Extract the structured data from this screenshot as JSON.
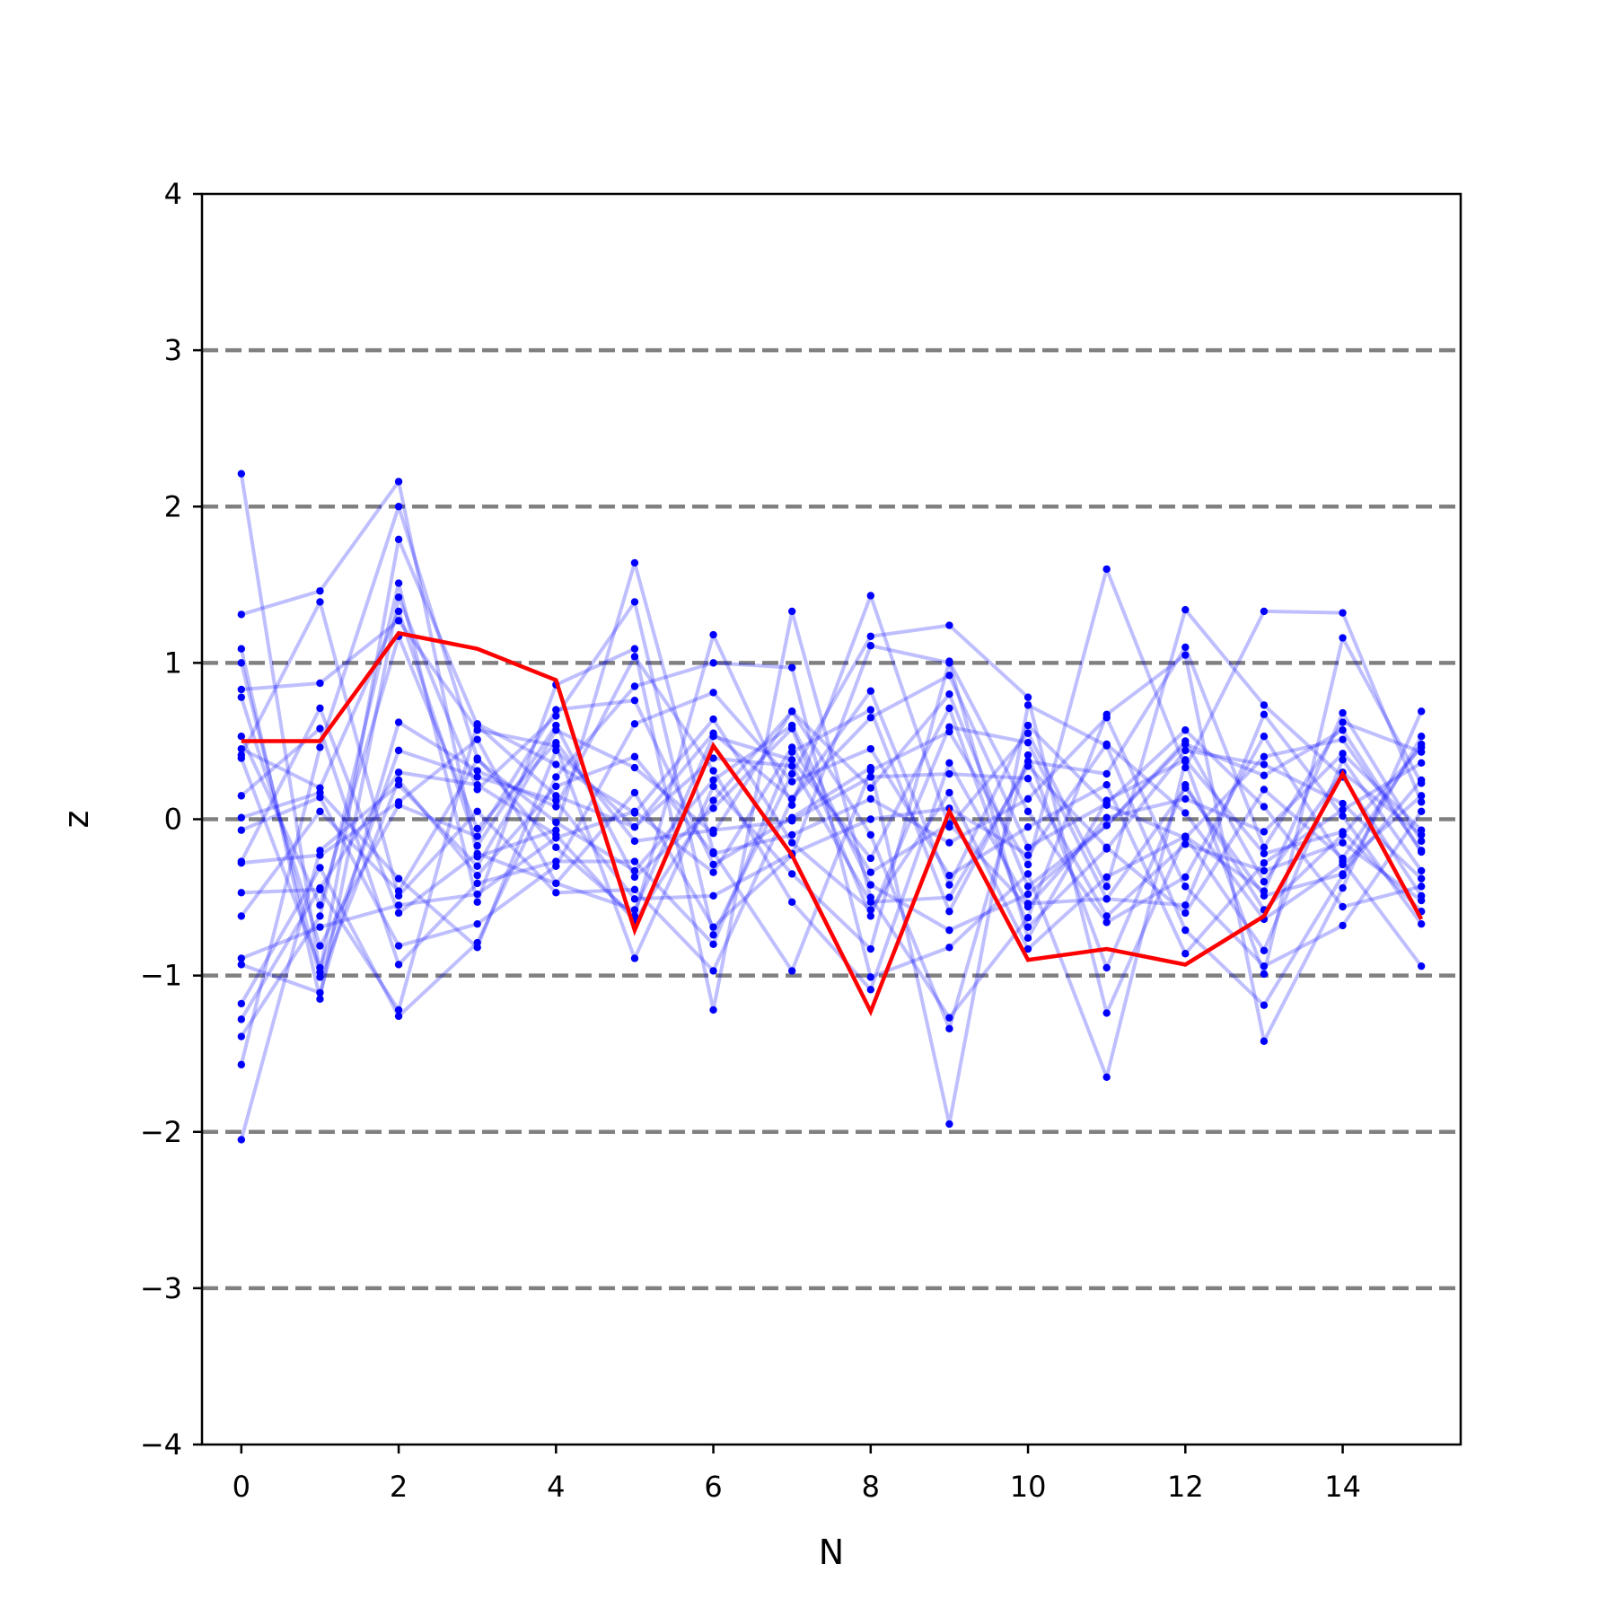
{
  "chart_data": {
    "type": "line",
    "title": "",
    "xlabel": "N",
    "ylabel": "z",
    "xlim": [
      -0.5,
      15.5
    ],
    "ylim": [
      -4,
      4
    ],
    "xticks": [
      0,
      2,
      4,
      6,
      8,
      10,
      12,
      14
    ],
    "xtick_labels": [
      "0",
      "2",
      "4",
      "6",
      "8",
      "10",
      "12",
      "14"
    ],
    "yticks": [
      -4,
      -3,
      -2,
      -1,
      0,
      1,
      2,
      3,
      4
    ],
    "ytick_labels": [
      "−4",
      "−3",
      "−2",
      "−1",
      "0",
      "1",
      "2",
      "3",
      "4"
    ],
    "reference_lines": [
      -3,
      -2,
      -1,
      0,
      1,
      2,
      3
    ],
    "grid": false,
    "x": [
      0,
      1,
      2,
      3,
      4,
      5,
      6,
      7,
      8,
      9,
      10,
      11,
      12,
      13,
      14,
      15
    ],
    "highlight_series": {
      "color": "#ff0000",
      "values": [
        0.5,
        0.5,
        1.19,
        1.09,
        0.89,
        -0.71,
        0.47,
        -0.23,
        -1.23,
        0.05,
        -0.9,
        -0.83,
        -0.93,
        -0.62,
        0.29,
        -0.64
      ]
    },
    "background_series_color": "#0000ff",
    "background_series": [
      {
        "values": [
          2.21,
          -0.98,
          1.79,
          0.6,
          0.15,
          -0.05,
          0.55,
          0.13,
          0.82,
          -0.42,
          0.6,
          0.09,
          -0.12,
          0.4,
          0.51,
          -0.2
        ]
      },
      {
        "values": [
          -2.05,
          -0.2,
          0.22,
          -0.3,
          0.57,
          0.33,
          -0.09,
          0.69,
          -0.1,
          -1.34,
          0.41,
          -0.95,
          0.22,
          -0.58,
          -0.1,
          0.46
        ]
      },
      {
        "values": [
          1.31,
          1.46,
          2.16,
          -0.24,
          -0.07,
          1.64,
          -0.21,
          -0.97,
          0.31,
          0.56,
          -0.29,
          1.6,
          0.33,
          1.33,
          1.32,
          0.11
        ]
      },
      {
        "values": [
          -1.57,
          0.46,
          2.0,
          0.39,
          -0.18,
          -0.62,
          1.18,
          0.09,
          1.43,
          -0.05,
          0.55,
          -0.43,
          1.34,
          0.73,
          0.27,
          -0.49
        ]
      },
      {
        "values": [
          1.09,
          -1.15,
          1.42,
          0.19,
          0.66,
          1.39,
          -0.74,
          0.29,
          1.17,
          1.24,
          0.78,
          -1.24,
          -0.11,
          -0.46,
          0.68,
          -0.14
        ]
      },
      {
        "values": [
          -1.39,
          -0.62,
          1.51,
          -0.53,
          0.86,
          1.09,
          -1.22,
          1.33,
          -0.5,
          -1.27,
          -0.63,
          0.67,
          1.05,
          -1.42,
          -0.44,
          0.69
        ]
      },
      {
        "values": [
          0.83,
          0.87,
          1.27,
          0.57,
          0.47,
          -0.89,
          0.21,
          -0.35,
          -0.83,
          1.01,
          0.05,
          -0.66,
          -0.37,
          0.53,
          -0.27,
          -0.94
        ]
      },
      {
        "values": [
          -1.18,
          -0.31,
          -1.26,
          -0.79,
          0.27,
          0.85,
          1.0,
          0.97,
          -1.01,
          -0.82,
          -0.35,
          -1.65,
          0.37,
          -0.99,
          1.16,
          0.23
        ]
      },
      {
        "values": [
          0.41,
          1.39,
          -0.49,
          0.05,
          -0.47,
          -0.45,
          -0.97,
          0.13,
          0.65,
          0.92,
          -0.18,
          0.1,
          0.57,
          0.08,
          -0.56,
          -0.43
        ]
      },
      {
        "values": [
          -0.93,
          -1.11,
          0.62,
          0.31,
          0.08,
          1.04,
          0.31,
          -0.53,
          -1.09,
          0.36,
          -0.54,
          -0.51,
          -0.55,
          0.67,
          0.02,
          -0.67
        ]
      },
      {
        "values": [
          0.15,
          0.58,
          -0.93,
          -0.41,
          -0.27,
          -0.27,
          -0.8,
          0.43,
          0.7,
          -0.59,
          0.37,
          0.29,
          1.1,
          -0.18,
          0.62,
          0.43
        ]
      },
      {
        "values": [
          -0.47,
          -0.45,
          -1.22,
          0.61,
          0.35,
          0.04,
          0.64,
          -0.15,
          -0.58,
          0.17,
          -0.83,
          -0.37,
          -0.11,
          -0.84,
          0.38,
          -0.33
        ]
      },
      {
        "values": [
          0.78,
          -0.81,
          0.09,
          -0.11,
          0.7,
          0.76,
          -0.29,
          0.01,
          0.33,
          -1.95,
          0.73,
          0.47,
          -0.71,
          -1.19,
          -0.36,
          0.53
        ]
      },
      {
        "values": [
          -0.27,
          0.71,
          -0.6,
          -0.22,
          -0.41,
          -0.58,
          0.53,
          0.38,
          -0.25,
          0.71,
          -0.69,
          -0.19,
          0.44,
          0.35,
          0.1,
          -0.38
        ]
      },
      {
        "values": [
          1.0,
          -1.01,
          0.25,
          -0.36,
          0.21,
          0.4,
          -0.22,
          -0.1,
          0.13,
          -0.15,
          0.13,
          0.65,
          -0.43,
          -0.94,
          -0.68,
          0.05
        ]
      },
      {
        "values": [
          -0.62,
          0.05,
          -0.46,
          0.38,
          -0.02,
          -0.33,
          0.25,
          0.6,
          -0.42,
          -0.71,
          -0.48,
          -0.04,
          0.48,
          0.28,
          0.57,
          -0.21
        ]
      },
      {
        "values": [
          0.53,
          -0.55,
          1.17,
          -0.06,
          0.49,
          -0.14,
          -0.07,
          -0.01,
          0.27,
          0.29,
          0.26,
          -0.62,
          -0.16,
          -0.33,
          -0.15,
          -0.52
        ]
      },
      {
        "values": [
          -0.07,
          0.14,
          -0.81,
          -0.67,
          -0.3,
          0.61,
          0.81,
          0.24,
          0.45,
          -0.36,
          -0.05,
          0.22,
          -0.86,
          -0.28,
          0.06,
          0.36
        ]
      },
      {
        "values": [
          0.39,
          -0.95,
          0.44,
          0.27,
          0.12,
          -0.51,
          -0.49,
          -0.22,
          0.0,
          0.07,
          -0.23,
          0.48,
          0.04,
          -0.64,
          -0.29,
          0.15
        ]
      },
      {
        "values": [
          -0.89,
          -0.69,
          -0.55,
          -0.48,
          -0.12,
          0.05,
          -0.34,
          0.46,
          -0.34,
          -0.03,
          -0.56,
          0.01,
          0.13,
          -0.08,
          0.42,
          -0.07
        ]
      },
      {
        "values": [
          0.45,
          0.2,
          1.33,
          -0.17,
          0.6,
          -0.37,
          0.07,
          0.58,
          -0.62,
          0.59,
          0.49,
          -0.51,
          0.2,
          -0.49,
          -0.35,
          0.25
        ]
      },
      {
        "values": [
          -0.28,
          -0.23,
          0.11,
          0.51,
          -0.41,
          0.17,
          -0.69,
          -0.23,
          1.11,
          1.0,
          -0.76,
          0.12,
          0.38,
          -0.22,
          -0.08,
          -0.59
        ]
      },
      {
        "values": [
          0.01,
          0.17,
          -0.38,
          -0.82,
          0.44,
          -0.05,
          0.39,
          0.34,
          -0.53,
          -0.5,
          0.34,
          -0.18,
          -0.6,
          0.19,
          -0.25,
          0.48
        ]
      },
      {
        "values": [
          -1.28,
          -0.44,
          0.3,
          0.22,
          -0.1,
          -0.65,
          0.12,
          0.69,
          0.2,
          0.8,
          -0.43,
          -0.04,
          0.5,
          -0.4,
          0.3,
          -0.1
        ]
      }
    ]
  }
}
